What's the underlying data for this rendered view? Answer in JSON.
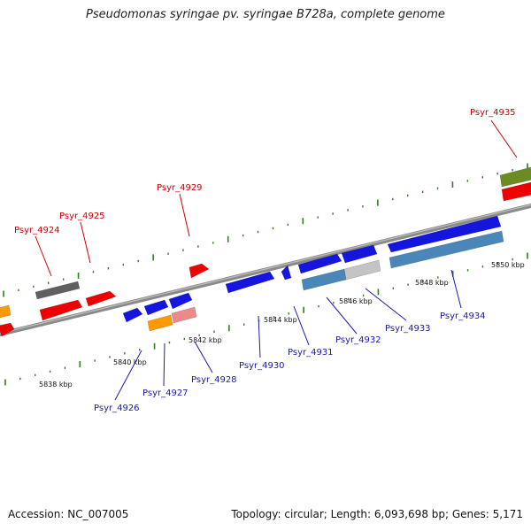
{
  "title": "Pseudomonas syringae pv. syringae B728a, complete genome",
  "footer": {
    "accession": "Accession: NC_007005",
    "summary": "Topology: circular; Length: 6,093,698 bp; Genes: 5,171"
  },
  "colors": {
    "backbone": "#8a8a8a",
    "tick": "#2e7d1e",
    "label_forward": "#cc0000",
    "label_reverse": "#1a1aaa",
    "gene_red": "#ee0000",
    "gene_blue": "#1515e0",
    "gene_steel": "#4a86b8",
    "gene_lightgray": "#c4c4c4",
    "gene_darkgray": "#606060",
    "gene_orange": "#ff9900",
    "gene_pink": "#ee8a8a",
    "gene_olive": "#6e8a22"
  },
  "kbp_labels": [
    "5838 kbp",
    "5840 kbp",
    "5842 kbp",
    "5844 kbp",
    "5846 kbp",
    "5848 kbp",
    "5850 kbp"
  ],
  "gene_labels_forward": [
    "Psyr_4924",
    "Psyr_4925",
    "Psyr_4929",
    "Psyr_4935"
  ],
  "gene_labels_reverse": [
    "Psyr_4926",
    "Psyr_4927",
    "Psyr_4928",
    "Psyr_4930",
    "Psyr_4931",
    "Psyr_4932",
    "Psyr_4933",
    "Psyr_4934"
  ]
}
